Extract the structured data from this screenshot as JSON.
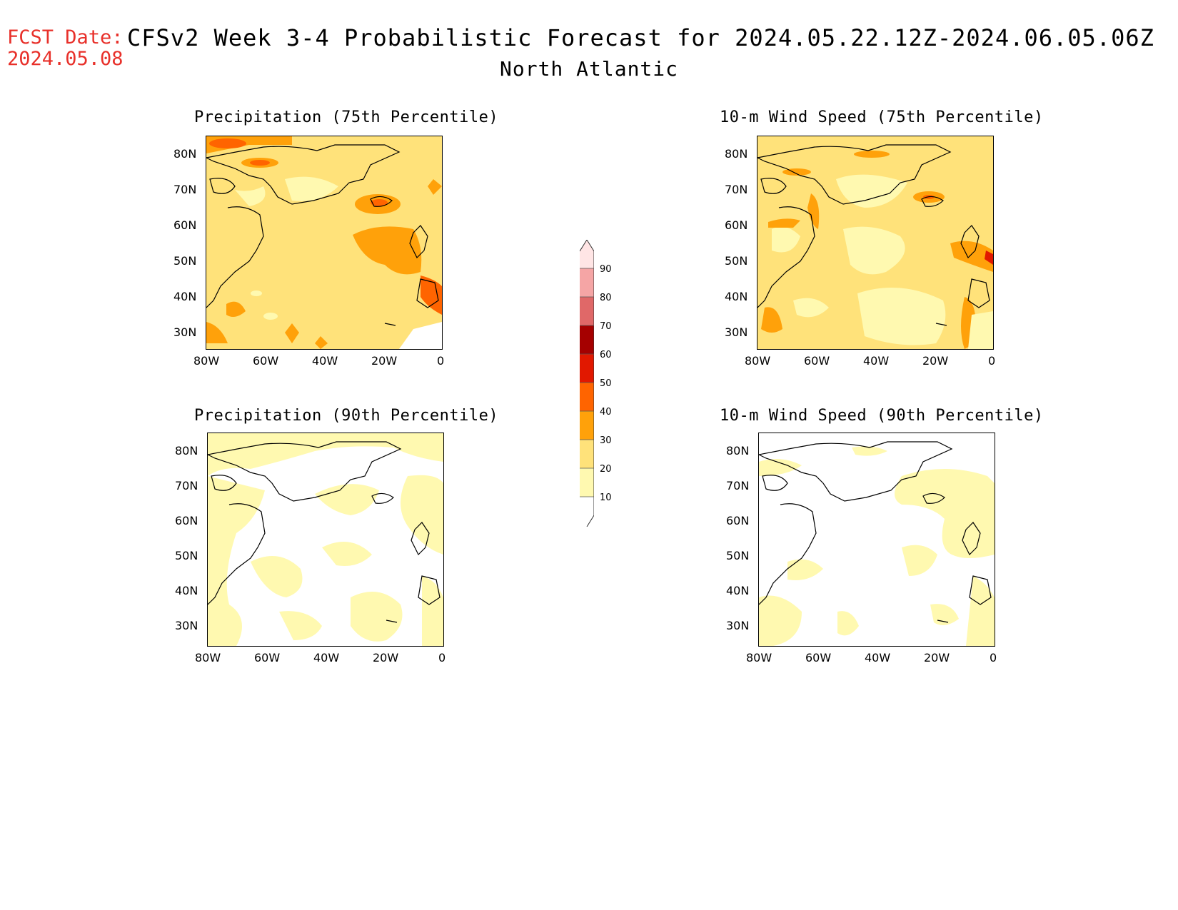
{
  "header": {
    "fcst_label": "FCST Date:",
    "fcst_date": "2024.05.08",
    "title": "CFSv2 Week 3-4 Probabilistic Forecast for 2024.05.22.12Z-2024.06.05.06Z",
    "subtitle": "North Atlantic"
  },
  "panels": [
    {
      "title": "Precipitation (75th Percentile)"
    },
    {
      "title": "10-m Wind Speed (75th Percentile)"
    },
    {
      "title": "Precipitation (90th Percentile)"
    },
    {
      "title": "10-m Wind Speed (90th Percentile)"
    }
  ],
  "axes": {
    "lat_labels": [
      "80N",
      "70N",
      "60N",
      "50N",
      "40N",
      "30N"
    ],
    "lon_labels": [
      "80W",
      "60W",
      "40W",
      "20W",
      "0"
    ]
  },
  "colorbar": {
    "labels": [
      "90",
      "80",
      "70",
      "60",
      "50",
      "40",
      "30",
      "20",
      "10"
    ],
    "colors": {
      "10-20": "#fff9b0",
      "20-30": "#ffe27a",
      "30-40": "#ffa10a",
      "40-50": "#ff6400",
      "50-60": "#e11800",
      "60-70": "#a50000",
      "70-80": "#e06868",
      "80-90": "#f5a5a5",
      "90-100": "#ffe5e5"
    }
  }
}
